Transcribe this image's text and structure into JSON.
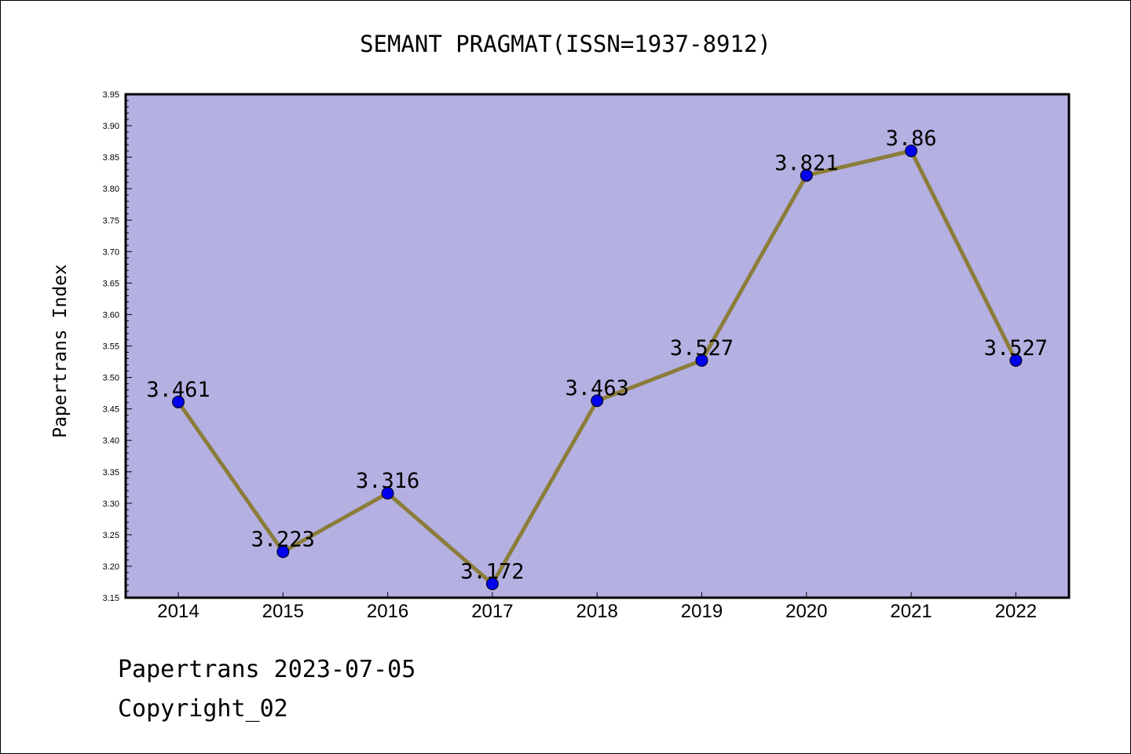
{
  "chart_data": {
    "type": "line",
    "title": "SEMANT PRAGMAT(ISSN=1937-8912)",
    "ylabel": "Papertrans Index",
    "xlabel": "",
    "categories": [
      "2014",
      "2015",
      "2016",
      "2017",
      "2018",
      "2019",
      "2020",
      "2021",
      "2022"
    ],
    "values": [
      3.461,
      3.223,
      3.316,
      3.172,
      3.463,
      3.527,
      3.821,
      3.86,
      3.527
    ],
    "data_labels": [
      "3.461",
      "3.223",
      "3.316",
      "3.172",
      "3.463",
      "3.527",
      "3.821",
      "3.86",
      "3.527"
    ],
    "ylim": [
      3.15,
      3.95
    ],
    "yticks": [
      "3.15",
      "3.20",
      "3.25",
      "3.30",
      "3.35",
      "3.40",
      "3.45",
      "3.50",
      "3.55",
      "3.60",
      "3.65",
      "3.70",
      "3.75",
      "3.80",
      "3.85",
      "3.90",
      "3.95"
    ],
    "grid": false,
    "colors": {
      "plot_background": "#b5b0e2",
      "line": "#8b7d3a",
      "marker_fill": "#0000ee",
      "marker_edge": "#000000"
    }
  },
  "footer": {
    "line1": "Papertrans 2023-07-05",
    "line2": "Copyright_02"
  }
}
